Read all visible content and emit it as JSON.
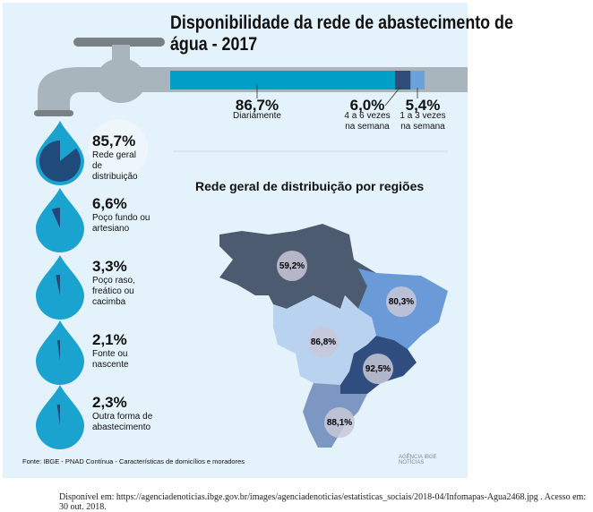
{
  "title": "Disponibilidade da rede de abastecimento de água - 2017",
  "frequency": [
    {
      "value": "86,7%",
      "label1": "Diariamente",
      "label2": "",
      "fraction": 86.7,
      "color": "#00a0c6"
    },
    {
      "value": "6,0%",
      "label1": "4 a 6 vezes",
      "label2": "na semana",
      "fraction": 6.0,
      "color": "#2e4d7b"
    },
    {
      "value": "5,4%",
      "label1": "1 a 3 vezes",
      "label2": "na semana",
      "fraction": 5.4,
      "color": "#6aa3db"
    }
  ],
  "sources": [
    {
      "value": "85,7%",
      "label": "Rede geral de distribuição"
    },
    {
      "value": "6,6%",
      "label": "Poço fundo ou artesiano"
    },
    {
      "value": "3,3%",
      "label": "Poço raso, freático ou cacimba"
    },
    {
      "value": "2,1%",
      "label": "Fonte ou nascente"
    },
    {
      "value": "2,3%",
      "label": "Outra forma de abastecimento"
    }
  ],
  "map": {
    "title": "Rede geral de distribuição por regiões",
    "regions": [
      {
        "value": "59,2%",
        "color": "#4d5b70"
      },
      {
        "value": "80,3%",
        "color": "#6a9bd8"
      },
      {
        "value": "86,8%",
        "color": "#b9d2ef"
      },
      {
        "value": "92,5%",
        "color": "#2f4d7e"
      },
      {
        "value": "88,1%",
        "color": "#7d97c3"
      }
    ]
  },
  "source_note": "Fonte: IBGE - PNAD Contínua - Características de domicílios e moradores",
  "logo": "AGÊNCIA IBGE NOTÍCIAS",
  "credit": "Disponível em: https://agenciadenoticias.ibge.gov.br/images/agenciadenoticias/estatisticas_sociais/2018-04/Infomapas-Agua2468.jpg . Acesso em: 30 out. 2018.",
  "chart_data": {
    "type": "bar",
    "categories": [
      "Diariamente",
      "4 a 6 vezes na semana",
      "1 a 3 vezes na semana"
    ],
    "values": [
      86.7,
      6.0,
      5.4
    ]
  }
}
